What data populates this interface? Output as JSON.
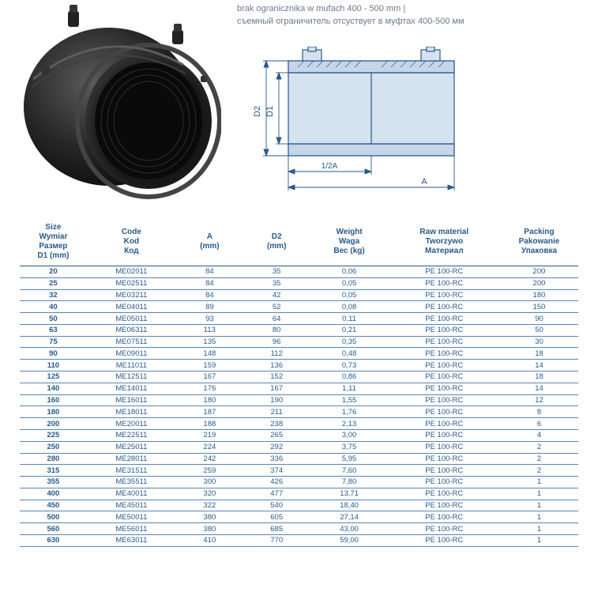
{
  "notes": {
    "line1": "brak ogranicznika w mufach 400 - 500 mm |",
    "line2": "съемный ограничитель отсуствует в муфтах 400-500 мм"
  },
  "photo": {
    "body_color": "#2a2a2a",
    "highlight_color": "#555555",
    "shadow_color": "#0a0a0a"
  },
  "diagram": {
    "stroke": "#2a5a8a",
    "fill": "#d5e2ef",
    "label_d2": "D2",
    "label_d1": "D1",
    "label_halfA": "1/2A",
    "label_A": "A"
  },
  "table": {
    "headers": [
      [
        "Size",
        "Wymiar",
        "Размер",
        "D1 (mm)"
      ],
      [
        "Code",
        "Kod",
        "Код",
        ""
      ],
      [
        "A",
        "(mm)",
        "",
        ""
      ],
      [
        "D2",
        "(mm)",
        "",
        ""
      ],
      [
        "Weight",
        "Waga",
        "Вес (kg)",
        ""
      ],
      [
        "Raw material",
        "Tworzywo",
        "Материал",
        ""
      ],
      [
        "Packing",
        "Pakowanie",
        "Упаковка",
        ""
      ]
    ],
    "rows": [
      [
        "20",
        "ME02011",
        "84",
        "35",
        "0,06",
        "PE 100-RC",
        "200"
      ],
      [
        "25",
        "ME02511",
        "84",
        "35",
        "0,05",
        "PE 100-RC",
        "200"
      ],
      [
        "32",
        "ME03211",
        "84",
        "42",
        "0,05",
        "PE 100-RC",
        "180"
      ],
      [
        "40",
        "ME04011",
        "89",
        "52",
        "0,08",
        "PE 100-RC",
        "150"
      ],
      [
        "50",
        "ME05011",
        "93",
        "64",
        "0,11",
        "PE 100-RC",
        "90"
      ],
      [
        "63",
        "ME06311",
        "113",
        "80",
        "0,21",
        "PE 100-RC",
        "50"
      ],
      [
        "75",
        "ME07511",
        "135",
        "96",
        "0,35",
        "PE 100-RC",
        "30"
      ],
      [
        "90",
        "ME09011",
        "148",
        "112",
        "0,48",
        "PE 100-RC",
        "18"
      ],
      [
        "110",
        "ME11011",
        "159",
        "136",
        "0,73",
        "PE 100-RC",
        "14"
      ],
      [
        "125",
        "ME12511",
        "167",
        "152",
        "0,86",
        "PE 100-RC",
        "18"
      ],
      [
        "140",
        "ME14011",
        "176",
        "167",
        "1,11",
        "PE 100-RC",
        "14"
      ],
      [
        "160",
        "ME16011",
        "180",
        "190",
        "1,55",
        "PE 100-RC",
        "12"
      ],
      [
        "180",
        "ME18011",
        "187",
        "211",
        "1,76",
        "PE 100-RC",
        "8"
      ],
      [
        "200",
        "ME20011",
        "188",
        "238",
        "2,13",
        "PE 100-RC",
        "6"
      ],
      [
        "225",
        "ME22511",
        "219",
        "265",
        "3,00",
        "PE 100-RC",
        "4"
      ],
      [
        "250",
        "ME25011",
        "224",
        "292",
        "3,75",
        "PE 100-RC",
        "2"
      ],
      [
        "280",
        "ME28011",
        "242",
        "336",
        "5,95",
        "PE 100-RC",
        "2"
      ],
      [
        "315",
        "ME31511",
        "259",
        "374",
        "7,60",
        "PE 100-RC",
        "2"
      ],
      [
        "355",
        "ME35511",
        "300",
        "426",
        "7,80",
        "PE 100-RC",
        "1"
      ],
      [
        "400",
        "ME40011",
        "320",
        "477",
        "13,71",
        "PE 100-RC",
        "1"
      ],
      [
        "450",
        "ME45011",
        "322",
        "540",
        "18,40",
        "PE 100-RC",
        "1"
      ],
      [
        "500",
        "ME50011",
        "380",
        "605",
        "27,14",
        "PE 100-RC",
        "1"
      ],
      [
        "560",
        "ME56011",
        "380",
        "685",
        "43,00",
        "PE 100-RC",
        "1"
      ],
      [
        "630",
        "ME63011",
        "410",
        "770",
        "59,00",
        "PE 100-RC",
        "1"
      ]
    ],
    "col_widths_pct": [
      12,
      16,
      12,
      12,
      14,
      20,
      14
    ]
  }
}
